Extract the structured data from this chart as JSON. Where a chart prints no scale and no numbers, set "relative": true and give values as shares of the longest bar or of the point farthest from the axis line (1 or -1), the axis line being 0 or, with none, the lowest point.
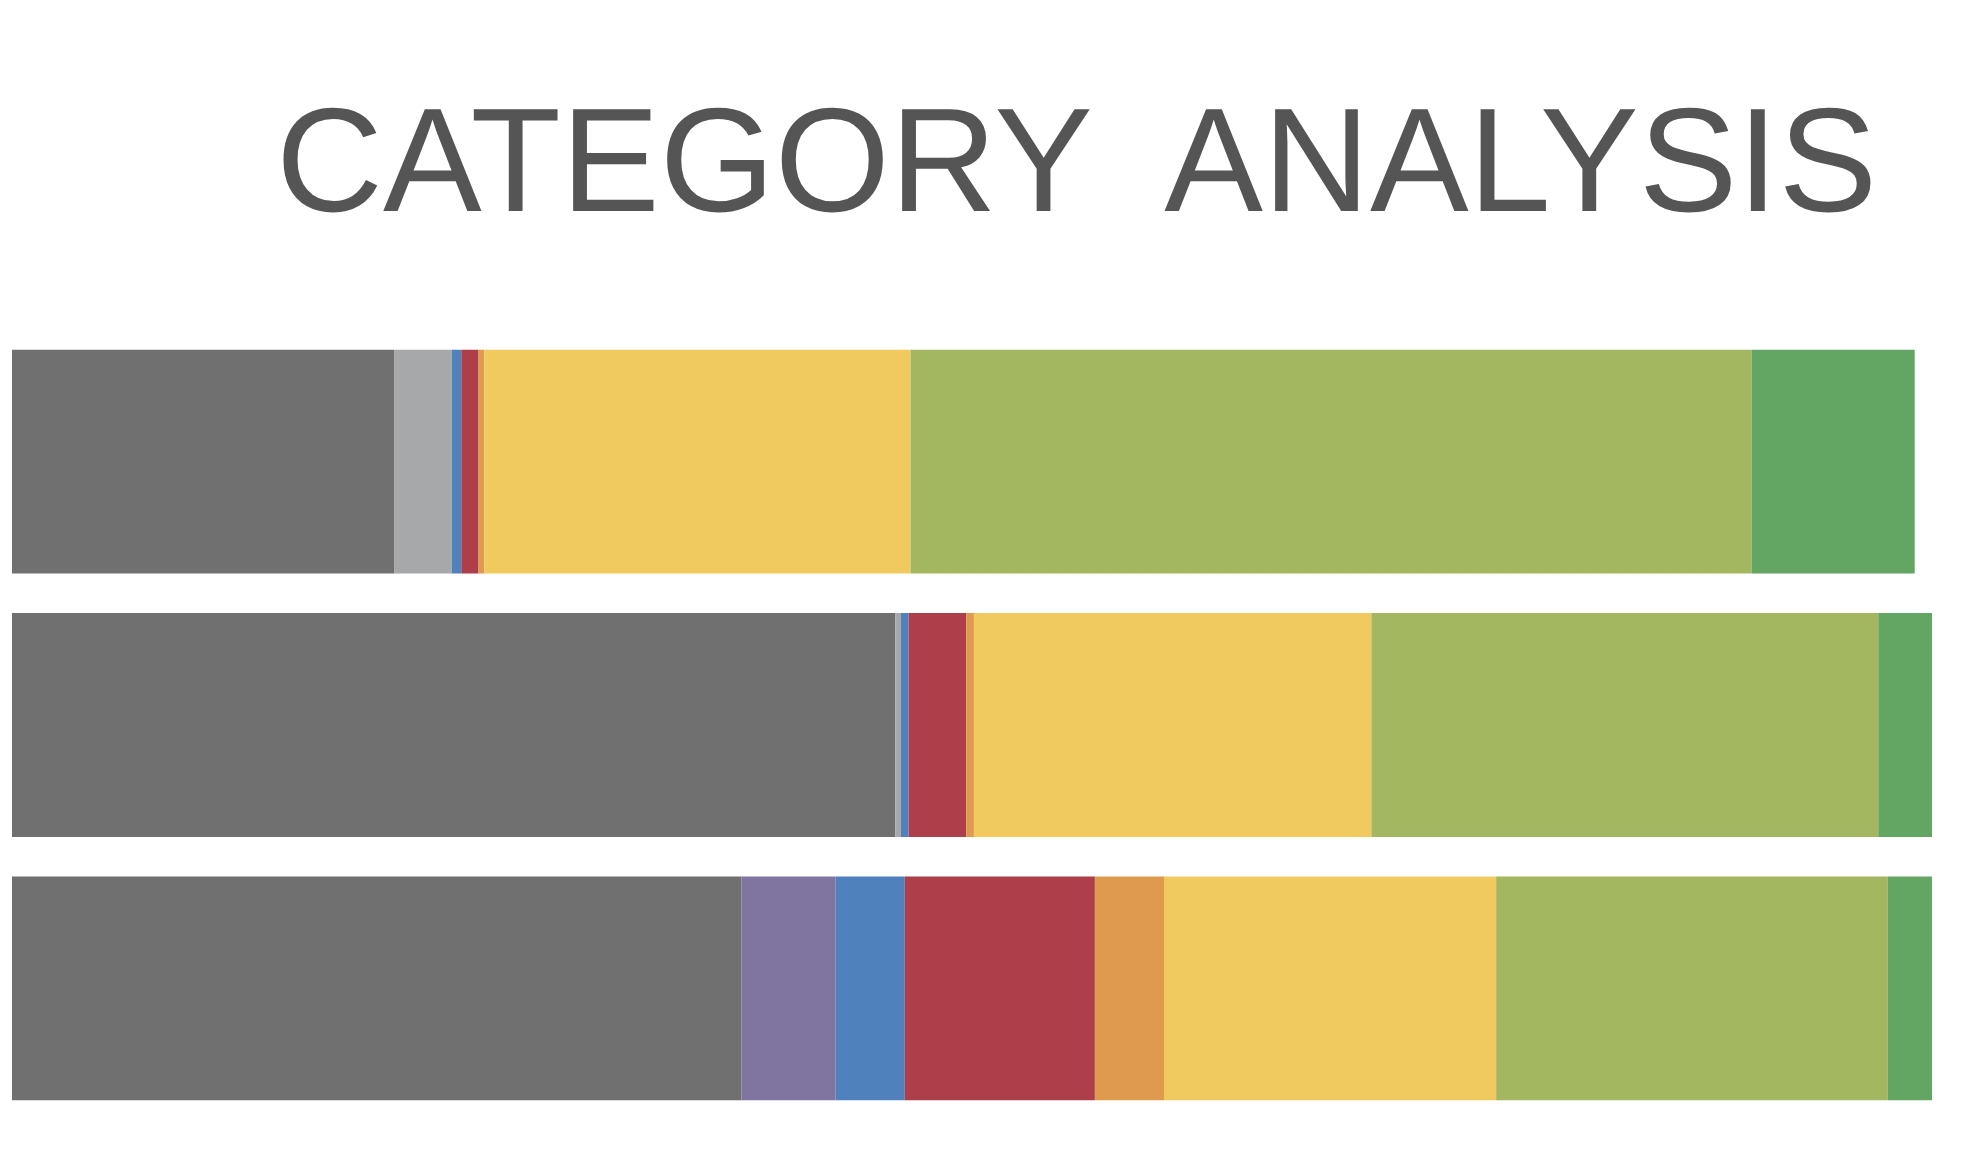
{
  "chart_data": {
    "type": "bar",
    "title": "CATEGORY  ANALYSIS",
    "orientation": "horizontal",
    "stacked": true,
    "relative": true,
    "categories": [
      null,
      null,
      null
    ],
    "series": [
      {
        "color": "#707071",
        "values": [
          0.199,
          0.46,
          0.38
        ]
      },
      {
        "color": "#a7a8aa",
        "values": [
          0.03,
          0.003,
          null
        ]
      },
      {
        "color": "#8074a0",
        "values": [
          null,
          null,
          0.049
        ]
      },
      {
        "color": "#4f81bd",
        "values": [
          0.005,
          0.004,
          0.036
        ]
      },
      {
        "color": "#ae3f4a",
        "values": [
          0.009,
          0.03,
          0.099
        ]
      },
      {
        "color": "#de9b4e",
        "values": [
          0.003,
          0.004,
          0.036
        ]
      },
      {
        "color": "#f0c95f",
        "values": [
          0.222,
          0.207,
          0.173
        ]
      },
      {
        "color": "#a3b761",
        "values": [
          0.438,
          0.264,
          0.204
        ]
      },
      {
        "color": "#63a663",
        "values": [
          0.085,
          0.028,
          0.023
        ]
      }
    ]
  }
}
